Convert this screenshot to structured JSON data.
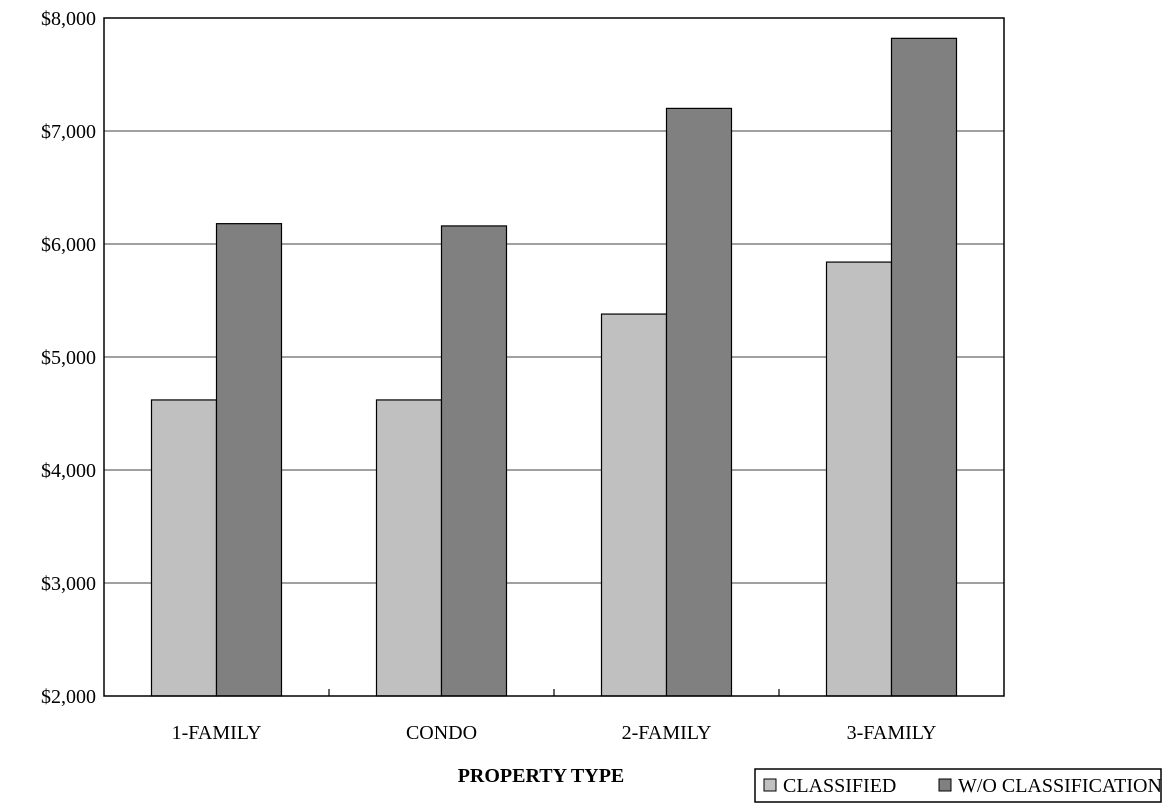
{
  "chart_data": {
    "type": "bar",
    "title": "",
    "xlabel": "PROPERTY TYPE",
    "ylabel": "",
    "categories": [
      "1-FAMILY",
      "CONDO",
      "2-FAMILY",
      "3-FAMILY"
    ],
    "series": [
      {
        "name": "CLASSIFIED",
        "color": "#c0c0c0",
        "values": [
          4620,
          4620,
          5380,
          5840
        ]
      },
      {
        "name": "W/O CLASSIFICATION",
        "color": "#808080",
        "values": [
          6180,
          6160,
          7200,
          7820
        ]
      }
    ],
    "ylim": [
      2000,
      8000
    ],
    "yticks": [
      2000,
      3000,
      4000,
      5000,
      6000,
      7000,
      8000
    ],
    "ytick_labels": [
      "$2,000",
      "$3,000",
      "$4,000",
      "$5,000",
      "$6,000",
      "$7,000",
      "$8,000"
    ],
    "grid": "horizontal",
    "legend_position": "bottom-right"
  }
}
